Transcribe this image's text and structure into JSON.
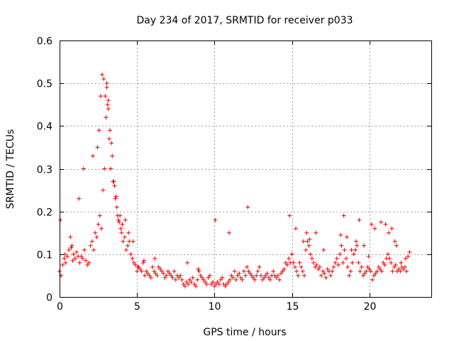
{
  "chart_data": {
    "type": "scatter",
    "title": "Day 234 of 2017, SRMTID for receiver p033",
    "xlabel": "GPS time / hours",
    "ylabel": "SRMTID / TECUs",
    "xlim": [
      0,
      24
    ],
    "ylim": [
      0,
      0.6
    ],
    "xticks": [
      0,
      5,
      10,
      15,
      20
    ],
    "yticks": [
      0,
      0.1,
      0.2,
      0.3,
      0.4,
      0.5,
      0.6
    ],
    "xtick_labels": [
      "0",
      "5",
      "10",
      "15",
      "20"
    ],
    "ytick_labels": [
      "0",
      "0.1",
      "0.2",
      "0.3",
      "0.4",
      "0.5",
      "0.6"
    ],
    "grid": true,
    "marker": "+",
    "color": "#ee0000",
    "series": [
      {
        "name": "p033",
        "x": [
          0.0,
          0.1,
          0.2,
          0.3,
          0.4,
          0.5,
          0.6,
          0.7,
          0.8,
          0.9,
          1.0,
          1.1,
          1.2,
          1.3,
          1.4,
          1.5,
          1.6,
          1.7,
          1.8,
          1.9,
          2.0,
          2.1,
          2.2,
          2.3,
          2.4,
          2.5,
          2.6,
          2.7,
          2.8,
          2.9,
          3.0,
          3.1,
          3.2,
          3.3,
          3.4,
          3.5,
          3.6,
          3.7,
          3.8,
          3.9,
          4.0,
          4.1,
          4.2,
          4.3,
          4.4,
          4.5,
          4.6,
          4.7,
          4.8,
          4.9,
          5.0,
          5.1,
          5.2,
          5.3,
          5.4,
          5.5,
          5.6,
          5.7,
          5.8,
          5.9,
          6.0,
          6.1,
          6.2,
          6.3,
          6.4,
          6.5,
          6.6,
          6.7,
          6.8,
          6.9,
          7.0,
          7.1,
          7.2,
          7.3,
          7.4,
          7.5,
          7.6,
          7.7,
          7.8,
          7.9,
          8.0,
          8.1,
          8.2,
          8.3,
          8.4,
          8.5,
          8.6,
          8.7,
          8.8,
          8.9,
          9.0,
          9.1,
          9.2,
          9.3,
          9.4,
          9.5,
          9.6,
          9.7,
          9.8,
          9.9,
          10.0,
          10.1,
          10.2,
          10.3,
          10.4,
          10.5,
          10.6,
          10.7,
          10.8,
          10.9,
          11.0,
          11.1,
          11.2,
          11.3,
          11.4,
          11.5,
          11.6,
          11.7,
          11.8,
          11.9,
          12.0,
          12.1,
          12.2,
          12.3,
          12.4,
          12.5,
          12.6,
          12.7,
          12.8,
          12.9,
          13.0,
          13.1,
          13.2,
          13.3,
          13.4,
          13.5,
          13.6,
          13.7,
          13.8,
          13.9,
          14.0,
          14.1,
          14.2,
          14.3,
          14.4,
          14.5,
          14.6,
          14.7,
          14.8,
          14.9,
          15.0,
          15.1,
          15.2,
          15.3,
          15.4,
          15.5,
          15.6,
          15.7,
          15.8,
          15.9,
          16.0,
          16.1,
          16.2,
          16.3,
          16.4,
          16.5,
          16.6,
          16.7,
          16.8,
          16.9,
          17.0,
          17.1,
          17.2,
          17.3,
          17.4,
          17.5,
          17.6,
          17.7,
          17.8,
          17.9,
          18.0,
          18.1,
          18.2,
          18.3,
          18.4,
          18.5,
          18.6,
          18.7,
          18.8,
          18.9,
          19.0,
          19.1,
          19.2,
          19.3,
          19.4,
          19.5,
          19.6,
          19.7,
          19.8,
          19.9,
          20.0,
          20.1,
          20.2,
          20.3,
          20.4,
          20.5,
          20.6,
          20.7,
          20.8,
          20.9,
          21.0,
          21.1,
          21.2,
          21.3,
          21.4,
          21.5,
          21.6,
          21.7,
          21.8,
          21.9,
          22.0,
          22.1,
          22.2,
          22.3,
          22.4,
          22.5,
          22.6,
          0.05,
          0.35,
          0.75,
          0.85,
          1.25,
          1.55,
          2.15,
          2.45,
          2.55,
          2.65,
          2.75,
          2.85,
          2.95,
          3.05,
          3.05,
          3.15,
          3.15,
          3.25,
          3.35,
          3.45,
          3.55,
          3.65,
          3.75,
          3.85,
          3.95,
          4.05,
          4.25,
          4.45,
          4.75,
          5.05,
          5.45,
          6.15,
          8.25,
          8.95,
          10.05,
          10.95,
          12.15,
          14.85,
          15.25,
          15.75,
          15.95,
          16.15,
          16.55,
          17.05,
          18.15,
          18.35,
          18.55,
          18.85,
          19.15,
          19.35,
          19.65,
          19.95,
          20.15,
          20.35,
          20.75,
          21.05,
          21.25,
          21.45,
          21.65,
          21.75,
          22.05,
          22.35
        ],
        "y": [
          0.06,
          0.05,
          0.075,
          0.09,
          0.08,
          0.095,
          0.11,
          0.14,
          0.12,
          0.1,
          0.09,
          0.105,
          0.095,
          0.08,
          0.095,
          0.09,
          0.11,
          0.085,
          0.075,
          0.08,
          0.12,
          0.13,
          0.11,
          0.15,
          0.14,
          0.17,
          0.19,
          0.16,
          0.25,
          0.3,
          0.42,
          0.45,
          0.37,
          0.3,
          0.33,
          0.27,
          0.23,
          0.21,
          0.18,
          0.19,
          0.15,
          0.13,
          0.14,
          0.11,
          0.12,
          0.13,
          0.1,
          0.09,
          0.08,
          0.075,
          0.06,
          0.07,
          0.065,
          0.06,
          0.08,
          0.05,
          0.06,
          0.055,
          0.05,
          0.045,
          0.07,
          0.06,
          0.055,
          0.05,
          0.07,
          0.065,
          0.06,
          0.055,
          0.045,
          0.05,
          0.06,
          0.055,
          0.05,
          0.045,
          0.06,
          0.04,
          0.05,
          0.045,
          0.05,
          0.04,
          0.03,
          0.025,
          0.035,
          0.03,
          0.04,
          0.035,
          0.045,
          0.03,
          0.025,
          0.04,
          0.06,
          0.05,
          0.045,
          0.04,
          0.035,
          0.03,
          0.045,
          0.05,
          0.03,
          0.035,
          0.025,
          0.03,
          0.035,
          0.03,
          0.04,
          0.045,
          0.03,
          0.025,
          0.03,
          0.035,
          0.04,
          0.05,
          0.045,
          0.06,
          0.04,
          0.05,
          0.055,
          0.045,
          0.04,
          0.06,
          0.05,
          0.07,
          0.06,
          0.055,
          0.05,
          0.045,
          0.04,
          0.05,
          0.06,
          0.07,
          0.05,
          0.04,
          0.045,
          0.05,
          0.055,
          0.045,
          0.04,
          0.05,
          0.06,
          0.05,
          0.045,
          0.05,
          0.04,
          0.055,
          0.06,
          0.065,
          0.08,
          0.075,
          0.09,
          0.08,
          0.1,
          0.08,
          0.07,
          0.06,
          0.05,
          0.08,
          0.07,
          0.06,
          0.05,
          0.11,
          0.13,
          0.12,
          0.1,
          0.09,
          0.08,
          0.07,
          0.075,
          0.065,
          0.07,
          0.05,
          0.06,
          0.055,
          0.045,
          0.065,
          0.06,
          0.05,
          0.06,
          0.07,
          0.08,
          0.09,
          0.075,
          0.1,
          0.12,
          0.08,
          0.11,
          0.09,
          0.07,
          0.05,
          0.06,
          0.08,
          0.1,
          0.11,
          0.12,
          0.08,
          0.06,
          0.07,
          0.05,
          0.055,
          0.06,
          0.07,
          0.065,
          0.06,
          0.04,
          0.05,
          0.055,
          0.06,
          0.07,
          0.065,
          0.06,
          0.08,
          0.075,
          0.09,
          0.1,
          0.09,
          0.08,
          0.06,
          0.07,
          0.075,
          0.06,
          0.065,
          0.06,
          0.07,
          0.065,
          0.07,
          0.06,
          0.095,
          0.105,
          0.18,
          0.1,
          0.115,
          0.085,
          0.23,
          0.3,
          0.33,
          0.35,
          0.39,
          0.47,
          0.52,
          0.51,
          0.47,
          0.49,
          0.5,
          0.46,
          0.44,
          0.39,
          0.36,
          0.27,
          0.26,
          0.235,
          0.19,
          0.175,
          0.16,
          0.17,
          0.18,
          0.15,
          0.13,
          0.07,
          0.085,
          0.09,
          0.08,
          0.065,
          0.18,
          0.15,
          0.21,
          0.19,
          0.16,
          0.13,
          0.15,
          0.135,
          0.15,
          0.11,
          0.145,
          0.19,
          0.14,
          0.11,
          0.13,
          0.18,
          0.12,
          0.095,
          0.17,
          0.16,
          0.175,
          0.17,
          0.15,
          0.16,
          0.13,
          0.12,
          0.08,
          0.09
        ]
      }
    ]
  }
}
